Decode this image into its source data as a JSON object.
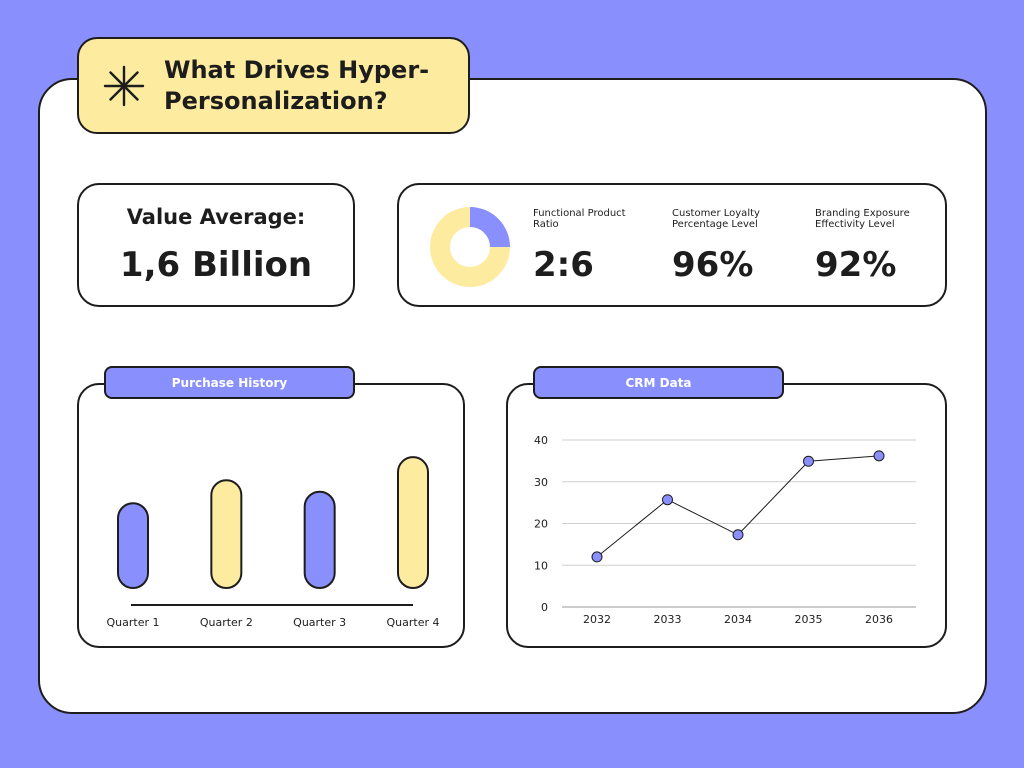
{
  "title": "What Drives Hyper-Personalization?",
  "value_card": {
    "label": "Value Average:",
    "value": "1,6 Billion"
  },
  "stats": [
    {
      "label": "Functional Product Ratio",
      "value": "2:6"
    },
    {
      "label": "Customer Loyalty Percentage Level",
      "value": "96%"
    },
    {
      "label": "Branding Exposure Effectivity Level",
      "value": "92%"
    }
  ],
  "donut": {
    "segments": [
      {
        "value": 2,
        "color": "#8a8ffe"
      },
      {
        "value": 6,
        "color": "#fdeba0"
      }
    ]
  },
  "colors": {
    "accent": "#8a8ffe",
    "yellow": "#fdeba0",
    "background": "#8a8ffe"
  },
  "icons": {
    "title_icon": "asterisk-icon"
  },
  "chart_data": [
    {
      "type": "bar",
      "title": "Purchase History",
      "categories": [
        "Quarter 1",
        "Quarter 2",
        "Quarter 3",
        "Quarter 4"
      ],
      "values": [
        53,
        65,
        59,
        77
      ],
      "colors": [
        "#8a8ffe",
        "#fdeba0",
        "#8a8ffe",
        "#fdeba0"
      ],
      "ylim": [
        0,
        100
      ],
      "grid": false,
      "ticks_y": false
    },
    {
      "type": "line",
      "title": "CRM Data",
      "x": [
        "2032",
        "2033",
        "2034",
        "2035",
        "2036"
      ],
      "values": [
        12,
        25.7,
        17.3,
        34.9,
        36.2
      ],
      "ylim": [
        0,
        40
      ],
      "yticks": [
        0,
        10,
        20,
        30,
        40
      ],
      "grid": true
    }
  ]
}
